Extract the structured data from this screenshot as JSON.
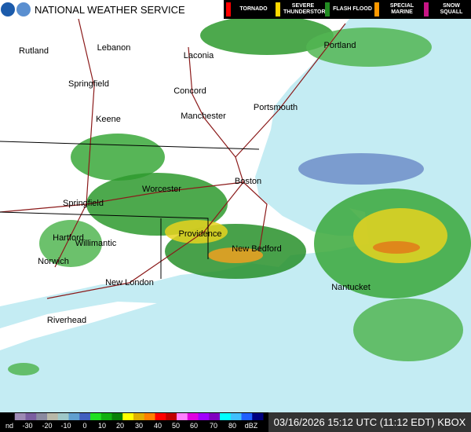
{
  "header": {
    "title": "NATIONAL WEATHER SERVICE"
  },
  "warnings": [
    {
      "label": "TORNADO",
      "color": "#ff0000"
    },
    {
      "label": "SEVERE THUNDERSTORM",
      "color": "#ffd700"
    },
    {
      "label": "FLASH FLOOD",
      "color": "#228b22"
    },
    {
      "label": "SPECIAL MARINE",
      "color": "#ff9900"
    },
    {
      "label": "SNOW SQUALL",
      "color": "#c71585"
    }
  ],
  "cities": [
    "Portland",
    "Rutland",
    "Lebanon",
    "Laconia",
    "Springfield",
    "Concord",
    "Portsmouth",
    "Keene",
    "Manchester",
    "Worcester",
    "Boston",
    "Springfield",
    "Hartford",
    "Providence",
    "Willimantic",
    "New Bedford",
    "Norwich",
    "New London",
    "Nantucket",
    "Riverhead"
  ],
  "scale": {
    "labels": [
      "nd",
      -30,
      -20,
      -10,
      0,
      10,
      20,
      30,
      40,
      50,
      60,
      70,
      80,
      "dBZ"
    ]
  },
  "timestamp": "03/16/2026 15:12 UTC (11:12 EDT) KBOX"
}
